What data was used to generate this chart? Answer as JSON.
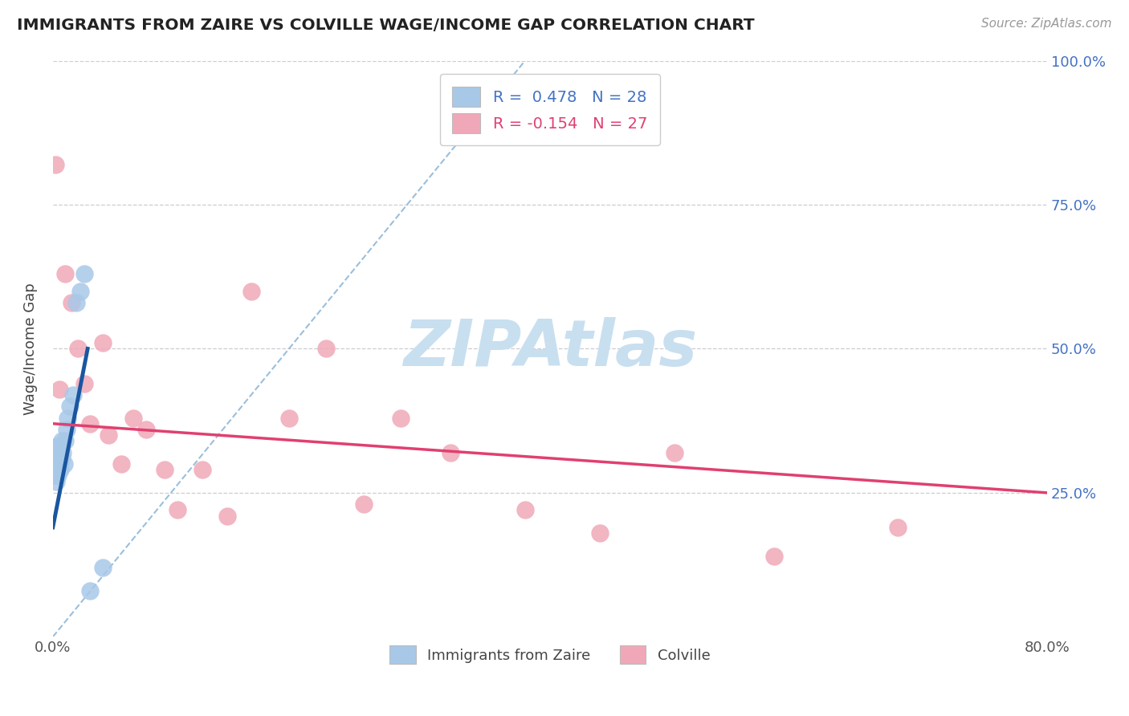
{
  "title": "IMMIGRANTS FROM ZAIRE VS COLVILLE WAGE/INCOME GAP CORRELATION CHART",
  "source_text": "Source: ZipAtlas.com",
  "ylabel": "Wage/Income Gap",
  "legend_labels": [
    "Immigrants from Zaire",
    "Colville"
  ],
  "R_blue": 0.478,
  "N_blue": 28,
  "R_pink": -0.154,
  "N_pink": 27,
  "xlim": [
    0.0,
    0.8
  ],
  "ylim": [
    0.0,
    1.0
  ],
  "xticks": [
    0.0,
    0.2,
    0.4,
    0.6,
    0.8
  ],
  "xticklabels": [
    "0.0%",
    "",
    "",
    "",
    "80.0%"
  ],
  "yticks": [
    0.0,
    0.25,
    0.5,
    0.75,
    1.0
  ],
  "yticklabels": [
    "",
    "25.0%",
    "50.0%",
    "75.0%",
    "100.0%"
  ],
  "blue_color": "#A8C8E8",
  "pink_color": "#F0A8B8",
  "blue_line_color": "#1A56A0",
  "pink_line_color": "#E04070",
  "ref_line_color": "#90B8D8",
  "grid_color": "#C8C8CC",
  "title_color": "#222222",
  "watermark_color": "#C8DFF0",
  "background_color": "#FFFFFF",
  "blue_dots_x": [
    0.001,
    0.001,
    0.002,
    0.002,
    0.002,
    0.003,
    0.003,
    0.003,
    0.004,
    0.004,
    0.005,
    0.005,
    0.006,
    0.006,
    0.007,
    0.007,
    0.008,
    0.009,
    0.01,
    0.011,
    0.012,
    0.014,
    0.016,
    0.019,
    0.022,
    0.025,
    0.03,
    0.04
  ],
  "blue_dots_y": [
    0.28,
    0.3,
    0.29,
    0.31,
    0.32,
    0.27,
    0.3,
    0.33,
    0.28,
    0.31,
    0.3,
    0.32,
    0.29,
    0.33,
    0.31,
    0.34,
    0.32,
    0.3,
    0.34,
    0.36,
    0.38,
    0.4,
    0.42,
    0.58,
    0.6,
    0.63,
    0.08,
    0.12
  ],
  "pink_dots_x": [
    0.002,
    0.005,
    0.01,
    0.015,
    0.02,
    0.025,
    0.03,
    0.04,
    0.045,
    0.055,
    0.065,
    0.075,
    0.09,
    0.1,
    0.12,
    0.14,
    0.16,
    0.19,
    0.22,
    0.25,
    0.28,
    0.32,
    0.38,
    0.44,
    0.5,
    0.58,
    0.68
  ],
  "pink_dots_y": [
    0.82,
    0.43,
    0.63,
    0.58,
    0.5,
    0.44,
    0.37,
    0.51,
    0.35,
    0.3,
    0.38,
    0.36,
    0.29,
    0.22,
    0.29,
    0.21,
    0.6,
    0.38,
    0.5,
    0.23,
    0.38,
    0.32,
    0.22,
    0.18,
    0.32,
    0.14,
    0.19
  ],
  "blue_line_x": [
    0.0,
    0.028
  ],
  "blue_line_y": [
    0.19,
    0.5
  ],
  "pink_line_x": [
    0.0,
    0.8
  ],
  "pink_line_y": [
    0.37,
    0.25
  ],
  "ref_line_x": [
    0.0,
    0.38
  ],
  "ref_line_y": [
    0.0,
    1.0
  ]
}
